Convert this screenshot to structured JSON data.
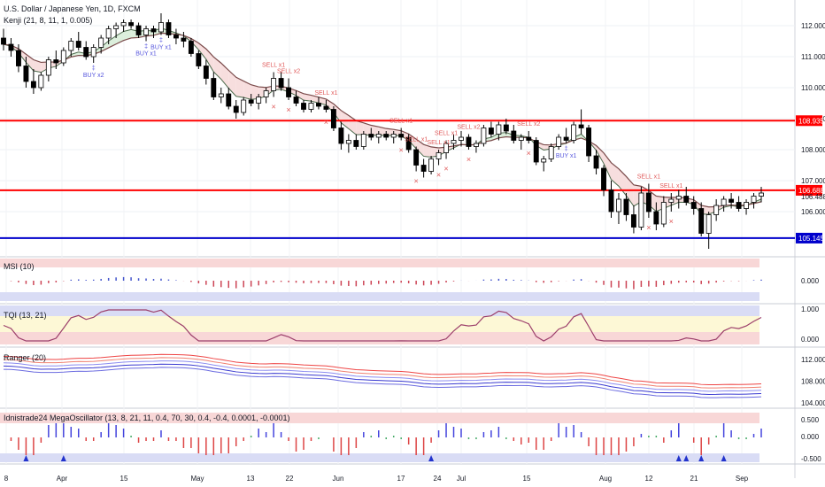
{
  "header": {
    "symbol_line": "U.S. Dollar / Japanese Yen, 1D, FXCM",
    "indicator": "Kenji (21, 8, 11, 1, 0.005)"
  },
  "panes": {
    "msi": {
      "label": "MSI (10)",
      "ticks": [
        "0.000"
      ]
    },
    "tqi": {
      "label": "TQI (13, 21)",
      "ticks": [
        "1.000",
        "0.000"
      ]
    },
    "ranger": {
      "label": "Ranger (20)",
      "ticks": [
        "112.000",
        "108.000",
        "104.000"
      ]
    },
    "mega": {
      "label": "Idnistrade24 MegaOscillator (13, 8, 21, 11, 0.4, 70, 30, 0.4, -0.4, 0.0001, -0.0001)",
      "ticks": [
        "0.500",
        "0.000",
        "-0.500"
      ]
    }
  },
  "colors": {
    "up": "#ffffff",
    "down": "#000000",
    "resistance": "#ff0000",
    "support": "#0000cc",
    "sell": "#e05a5a",
    "buy": "#5555dd",
    "bg_red": "#f8d7d7",
    "bg_blue": "#d9dcf5",
    "bg_yellow": "#fdf8d6"
  },
  "chart_data": {
    "type": "candlestick",
    "title": "U.S. Dollar / Japanese Yen, 1D, FXCM",
    "ylim": [
      104.6,
      112.6
    ],
    "y_ticks": [
      "112.000",
      "111.000",
      "110.000",
      "109.000",
      "108.000",
      "107.000",
      "106.000"
    ],
    "x_ticks": [
      "8",
      "Apr",
      "15",
      "May",
      "13",
      "22",
      "Jun",
      "17",
      "24",
      "Jul",
      "15",
      "Aug",
      "12",
      "21",
      "Sep"
    ],
    "price_labels": [
      {
        "text": "108.935",
        "value": 108.935,
        "style": "resistance"
      },
      {
        "text": "106.688",
        "value": 106.688,
        "style": "resistance"
      },
      {
        "text": "106.488",
        "value": 106.488,
        "style": "plain"
      },
      {
        "text": "105.145",
        "value": 105.145,
        "style": "support"
      }
    ],
    "horizontal_lines": [
      108.935,
      106.688,
      105.145
    ],
    "signals": [
      {
        "text": "BUY x2",
        "type": "buy",
        "index": 12
      },
      {
        "text": "BUY x1",
        "type": "buy",
        "index": 19
      },
      {
        "text": "BUY x1",
        "type": "buy",
        "index": 21
      },
      {
        "text": "SELL x2",
        "type": "sell",
        "index": 38
      },
      {
        "text": "SELL x1",
        "type": "sell",
        "index": 36
      },
      {
        "text": "SELL x1",
        "type": "sell",
        "index": 43
      },
      {
        "text": "SELL x1",
        "type": "sell",
        "index": 53
      },
      {
        "text": "SELL x1",
        "type": "sell",
        "index": 55
      },
      {
        "text": "SELL x1",
        "type": "sell",
        "index": 58
      },
      {
        "text": "SELL x1",
        "type": "sell",
        "index": 59
      },
      {
        "text": "SELL x2",
        "type": "sell",
        "index": 62
      },
      {
        "text": "SELL x2",
        "type": "sell",
        "index": 70
      },
      {
        "text": "BUY x1",
        "type": "buy",
        "index": 75
      },
      {
        "text": "SELL x1",
        "type": "sell",
        "index": 86
      },
      {
        "text": "SELL x1",
        "type": "sell",
        "index": 89
      }
    ],
    "candles_ohlc": [
      [
        111.6,
        111.9,
        111.2,
        111.4
      ],
      [
        111.4,
        111.6,
        111.0,
        111.2
      ],
      [
        111.2,
        111.4,
        110.5,
        110.7
      ],
      [
        110.7,
        111.0,
        110.0,
        110.2
      ],
      [
        110.2,
        110.6,
        109.8,
        110.0
      ],
      [
        110.0,
        110.5,
        109.9,
        110.4
      ],
      [
        110.4,
        111.0,
        110.2,
        110.9
      ],
      [
        110.9,
        111.2,
        110.6,
        110.8
      ],
      [
        110.8,
        111.3,
        110.7,
        111.2
      ],
      [
        111.2,
        111.6,
        111.0,
        111.5
      ],
      [
        111.5,
        111.8,
        111.2,
        111.3
      ],
      [
        111.3,
        111.5,
        110.9,
        111.0
      ],
      [
        111.0,
        111.4,
        110.8,
        111.3
      ],
      [
        111.3,
        111.7,
        111.1,
        111.6
      ],
      [
        111.6,
        112.0,
        111.4,
        111.9
      ],
      [
        111.9,
        112.1,
        111.6,
        112.0
      ],
      [
        112.0,
        112.2,
        111.8,
        112.1
      ],
      [
        112.1,
        112.2,
        111.9,
        112.0
      ],
      [
        112.0,
        112.1,
        111.6,
        111.7
      ],
      [
        111.7,
        112.0,
        111.5,
        111.9
      ],
      [
        111.9,
        112.0,
        111.6,
        111.8
      ],
      [
        111.8,
        112.4,
        111.7,
        112.1
      ],
      [
        112.1,
        112.2,
        111.6,
        111.7
      ],
      [
        111.7,
        111.9,
        111.4,
        111.6
      ],
      [
        111.6,
        111.8,
        111.3,
        111.5
      ],
      [
        111.5,
        111.6,
        111.0,
        111.1
      ],
      [
        111.1,
        111.2,
        110.6,
        110.7
      ],
      [
        110.7,
        110.9,
        110.1,
        110.3
      ],
      [
        110.3,
        110.5,
        109.6,
        109.7
      ],
      [
        109.7,
        110.0,
        109.5,
        109.8
      ],
      [
        109.8,
        110.0,
        109.3,
        109.4
      ],
      [
        109.4,
        109.6,
        109.0,
        109.2
      ],
      [
        109.2,
        109.7,
        109.1,
        109.6
      ],
      [
        109.6,
        109.8,
        109.4,
        109.5
      ],
      [
        109.5,
        109.8,
        109.3,
        109.7
      ],
      [
        109.7,
        110.0,
        109.5,
        109.9
      ],
      [
        109.9,
        110.5,
        109.7,
        110.3
      ],
      [
        110.3,
        110.5,
        109.9,
        110.0
      ],
      [
        110.0,
        110.3,
        109.6,
        109.7
      ],
      [
        109.7,
        109.9,
        109.4,
        109.5
      ],
      [
        109.5,
        109.6,
        109.2,
        109.3
      ],
      [
        109.3,
        109.6,
        109.2,
        109.5
      ],
      [
        109.5,
        109.7,
        109.3,
        109.4
      ],
      [
        109.4,
        109.6,
        109.2,
        109.3
      ],
      [
        109.3,
        109.4,
        108.6,
        108.7
      ],
      [
        108.7,
        108.9,
        108.0,
        108.2
      ],
      [
        108.2,
        108.5,
        107.9,
        108.3
      ],
      [
        108.3,
        108.5,
        108.0,
        108.1
      ],
      [
        108.1,
        108.6,
        108.0,
        108.5
      ],
      [
        108.5,
        108.7,
        108.3,
        108.4
      ],
      [
        108.4,
        108.6,
        108.2,
        108.5
      ],
      [
        108.5,
        108.6,
        108.3,
        108.4
      ],
      [
        108.4,
        108.6,
        108.2,
        108.5
      ],
      [
        108.5,
        108.7,
        108.3,
        108.4
      ],
      [
        108.4,
        108.5,
        107.9,
        108.0
      ],
      [
        108.0,
        108.1,
        107.3,
        107.5
      ],
      [
        107.5,
        107.7,
        107.1,
        107.3
      ],
      [
        107.3,
        107.8,
        107.2,
        107.7
      ],
      [
        107.7,
        108.0,
        107.5,
        107.9
      ],
      [
        107.9,
        108.3,
        107.7,
        108.2
      ],
      [
        108.2,
        108.5,
        108.0,
        108.3
      ],
      [
        108.3,
        108.6,
        108.1,
        108.4
      ],
      [
        108.4,
        108.5,
        108.0,
        108.1
      ],
      [
        108.1,
        108.3,
        107.9,
        108.2
      ],
      [
        108.2,
        108.8,
        108.1,
        108.7
      ],
      [
        108.7,
        108.9,
        108.4,
        108.5
      ],
      [
        108.5,
        108.9,
        108.3,
        108.8
      ],
      [
        108.8,
        109.0,
        108.5,
        108.6
      ],
      [
        108.6,
        108.8,
        108.2,
        108.3
      ],
      [
        108.3,
        108.5,
        108.0,
        108.4
      ],
      [
        108.4,
        108.6,
        108.2,
        108.3
      ],
      [
        108.3,
        108.4,
        107.5,
        107.6
      ],
      [
        107.6,
        107.8,
        107.3,
        107.7
      ],
      [
        107.7,
        108.2,
        107.6,
        108.1
      ],
      [
        108.1,
        108.5,
        108.0,
        108.4
      ],
      [
        108.4,
        108.7,
        108.2,
        108.3
      ],
      [
        108.3,
        108.9,
        108.2,
        108.8
      ],
      [
        108.8,
        109.3,
        108.5,
        108.7
      ],
      [
        108.7,
        108.8,
        107.6,
        107.8
      ],
      [
        107.8,
        108.0,
        107.2,
        107.4
      ],
      [
        107.4,
        107.5,
        106.5,
        106.7
      ],
      [
        106.7,
        107.0,
        105.8,
        106.0
      ],
      [
        106.0,
        106.6,
        105.6,
        106.4
      ],
      [
        106.4,
        106.6,
        105.7,
        105.9
      ],
      [
        105.9,
        106.2,
        105.3,
        105.5
      ],
      [
        105.5,
        106.8,
        105.4,
        106.6
      ],
      [
        106.6,
        106.9,
        105.8,
        106.0
      ],
      [
        106.0,
        106.3,
        105.4,
        105.6
      ],
      [
        105.6,
        106.5,
        105.5,
        106.3
      ],
      [
        106.3,
        106.6,
        106.0,
        106.4
      ],
      [
        106.4,
        106.7,
        106.1,
        106.5
      ],
      [
        106.5,
        106.8,
        106.2,
        106.3
      ],
      [
        106.3,
        106.5,
        105.9,
        106.1
      ],
      [
        106.1,
        106.3,
        105.2,
        105.3
      ],
      [
        105.3,
        106.0,
        104.8,
        105.9
      ],
      [
        105.9,
        106.4,
        105.7,
        106.2
      ],
      [
        106.2,
        106.5,
        106.0,
        106.4
      ],
      [
        106.4,
        106.6,
        106.1,
        106.3
      ],
      [
        106.3,
        106.5,
        106.0,
        106.1
      ],
      [
        106.1,
        106.4,
        105.9,
        106.3
      ],
      [
        106.3,
        106.6,
        106.1,
        106.5
      ],
      [
        106.5,
        106.8,
        106.3,
        106.6
      ]
    ]
  }
}
